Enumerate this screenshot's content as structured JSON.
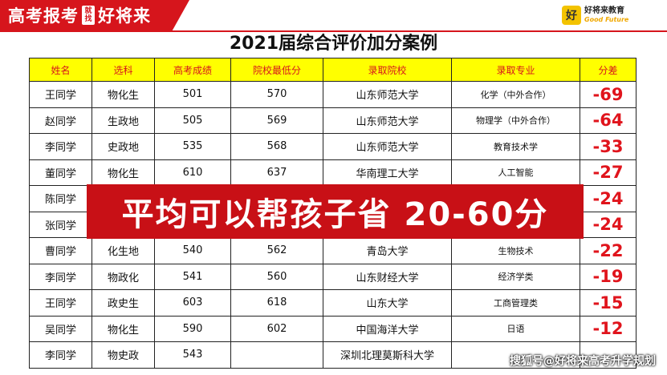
{
  "banner": {
    "part1": "高考报考",
    "badge": "就找",
    "part2": "好将来"
  },
  "logo": {
    "mark": "好",
    "cn": "好将来教育",
    "en": "Good Future"
  },
  "title": "2021届综合评价加分案例",
  "table": {
    "headers": [
      "姓名",
      "选科",
      "高考成绩",
      "院校最低分",
      "录取院校",
      "录取专业",
      "分差"
    ],
    "rows": [
      [
        "王同学",
        "物化生",
        "501",
        "570",
        "山东师范大学",
        "化学（中外合作）",
        "-69"
      ],
      [
        "赵同学",
        "生政地",
        "505",
        "569",
        "山东师范大学",
        "物理学（中外合作）",
        "-64"
      ],
      [
        "李同学",
        "史政地",
        "535",
        "568",
        "山东师范大学",
        "教育技术学",
        "-33"
      ],
      [
        "董同学",
        "物化生",
        "610",
        "637",
        "华南理工大学",
        "人工智能",
        "-27"
      ],
      [
        "陈同学",
        "",
        "",
        "",
        "",
        "",
        "-24"
      ],
      [
        "张同学",
        "",
        "",
        "",
        "",
        "",
        "-24"
      ],
      [
        "曹同学",
        "化生地",
        "540",
        "562",
        "青岛大学",
        "生物技术",
        "-22"
      ],
      [
        "李同学",
        "物政化",
        "541",
        "560",
        "山东财经大学",
        "经济学类",
        "-19"
      ],
      [
        "王同学",
        "政史生",
        "603",
        "618",
        "山东大学",
        "工商管理类",
        "-15"
      ],
      [
        "吴同学",
        "物化生",
        "590",
        "602",
        "中国海洋大学",
        "日语",
        "-12"
      ],
      [
        "李同学",
        "物史政",
        "543",
        "",
        "深圳北理莫斯科大学",
        "",
        ""
      ]
    ]
  },
  "overlay": "平均可以帮孩子省  20-60分",
  "watermark": "搜狐号@好将来高考升学规划",
  "colors": {
    "brand_red": "#d6151c",
    "header_yellow": "#ffff00",
    "diff_red": "#e0141c"
  }
}
